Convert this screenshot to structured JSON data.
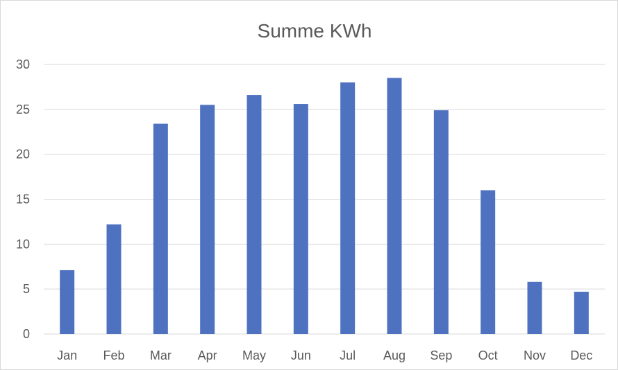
{
  "chart_data": {
    "type": "bar",
    "title": "Summe KWh",
    "xlabel": "",
    "ylabel": "",
    "categories": [
      "Jan",
      "Feb",
      "Mar",
      "Apr",
      "May",
      "Jun",
      "Jul",
      "Aug",
      "Sep",
      "Oct",
      "Nov",
      "Dec"
    ],
    "series": [
      {
        "values": [
          7.1,
          12.2,
          23.4,
          25.5,
          26.6,
          25.6,
          28.0,
          28.5,
          24.9,
          16.0,
          5.8,
          4.7
        ],
        "color": "#4f72c0"
      }
    ],
    "ylim": [
      0,
      30
    ],
    "yticks": [
      0,
      5,
      10,
      15,
      20,
      25,
      30
    ],
    "grid": true,
    "legend": "none"
  }
}
